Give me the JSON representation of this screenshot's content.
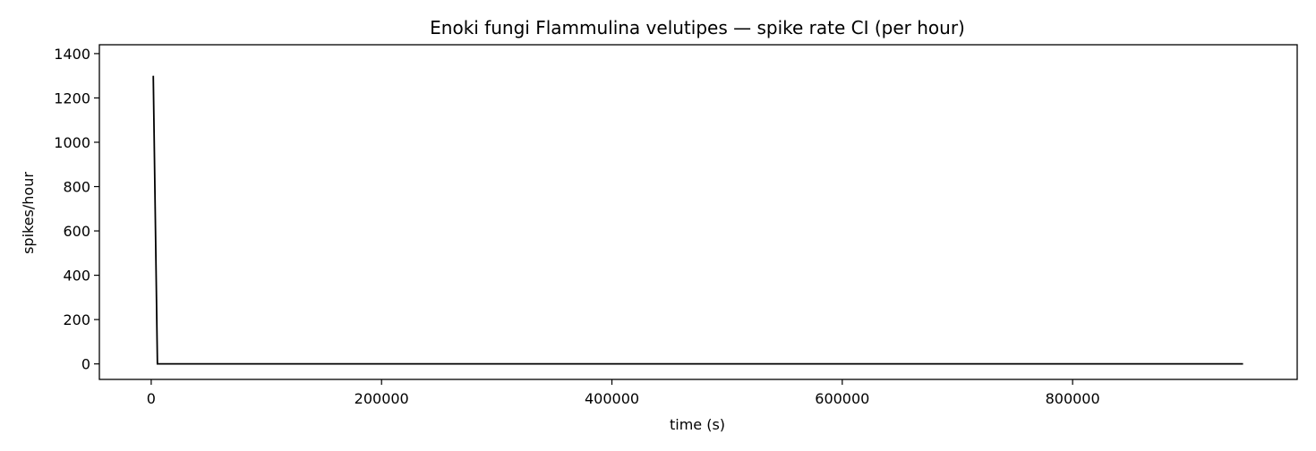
{
  "chart_data": {
    "type": "line",
    "title": "Enoki fungi Flammulina velutipes — spike rate CI (per hour)",
    "xlabel": "time (s)",
    "ylabel": "spikes/hour",
    "xlim": [
      -45000,
      995000
    ],
    "ylim": [
      -70,
      1440
    ],
    "x_ticks": [
      0,
      200000,
      400000,
      600000,
      800000
    ],
    "x_tick_labels": [
      "0",
      "200000",
      "400000",
      "600000",
      "800000"
    ],
    "y_ticks": [
      0,
      200,
      400,
      600,
      800,
      1000,
      1200,
      1400
    ],
    "y_tick_labels": [
      "0",
      "200",
      "400",
      "600",
      "800",
      "1000",
      "1200",
      "1400"
    ],
    "grid": false,
    "line_color": "#000000",
    "series": [
      {
        "x": [
          1800,
          5400,
          948000
        ],
        "y": [
          1300,
          0,
          0
        ]
      }
    ]
  }
}
